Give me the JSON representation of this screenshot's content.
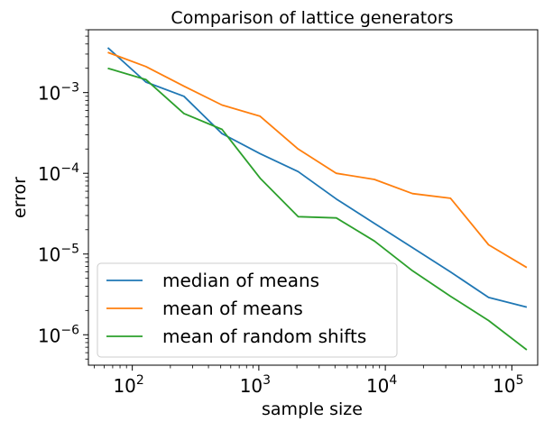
{
  "chart_data": {
    "type": "line",
    "title": "Comparison of lattice generators",
    "xlabel": "sample size",
    "ylabel": "error",
    "xscale": "log",
    "yscale": "log",
    "xlim": [
      45,
      160000
    ],
    "ylim": [
      4.2e-07,
      0.006
    ],
    "grid": false,
    "legend_position": "lower-left",
    "x": [
      64,
      128,
      256,
      512,
      1024,
      2048,
      4096,
      8192,
      16384,
      32768,
      65536,
      131072
    ],
    "series": [
      {
        "name": "median of means",
        "color": "#1f77b4",
        "values": [
          0.0036,
          0.00135,
          0.0009,
          0.00031,
          0.000175,
          0.000105,
          4.8e-05,
          2.4e-05,
          1.2e-05,
          6e-06,
          2.9e-06,
          2.2e-06
        ]
      },
      {
        "name": "mean of means",
        "color": "#ff7f0e",
        "values": [
          0.00315,
          0.0021,
          0.0012,
          0.0007,
          0.00051,
          0.0002,
          0.0001,
          8.4e-05,
          5.6e-05,
          4.9e-05,
          1.3e-05,
          6.8e-06
        ]
      },
      {
        "name": "mean of random shifts",
        "color": "#2ca02c",
        "values": [
          0.002,
          0.00145,
          0.00055,
          0.00035,
          8.7e-05,
          2.9e-05,
          2.8e-05,
          1.45e-05,
          6.2e-06,
          3e-06,
          1.5e-06,
          6.5e-07
        ]
      }
    ],
    "x_ticks": [
      {
        "value": 100,
        "base": "10",
        "exp": "2"
      },
      {
        "value": 1000,
        "base": "10",
        "exp": "3"
      },
      {
        "value": 10000,
        "base": "10",
        "exp": "4"
      },
      {
        "value": 100000,
        "base": "10",
        "exp": "5"
      }
    ],
    "y_ticks": [
      {
        "value": 1e-06,
        "base": "10",
        "exp": "−6"
      },
      {
        "value": 1e-05,
        "base": "10",
        "exp": "−5"
      },
      {
        "value": 0.0001,
        "base": "10",
        "exp": "−4"
      },
      {
        "value": 0.001,
        "base": "10",
        "exp": "−3"
      }
    ]
  }
}
